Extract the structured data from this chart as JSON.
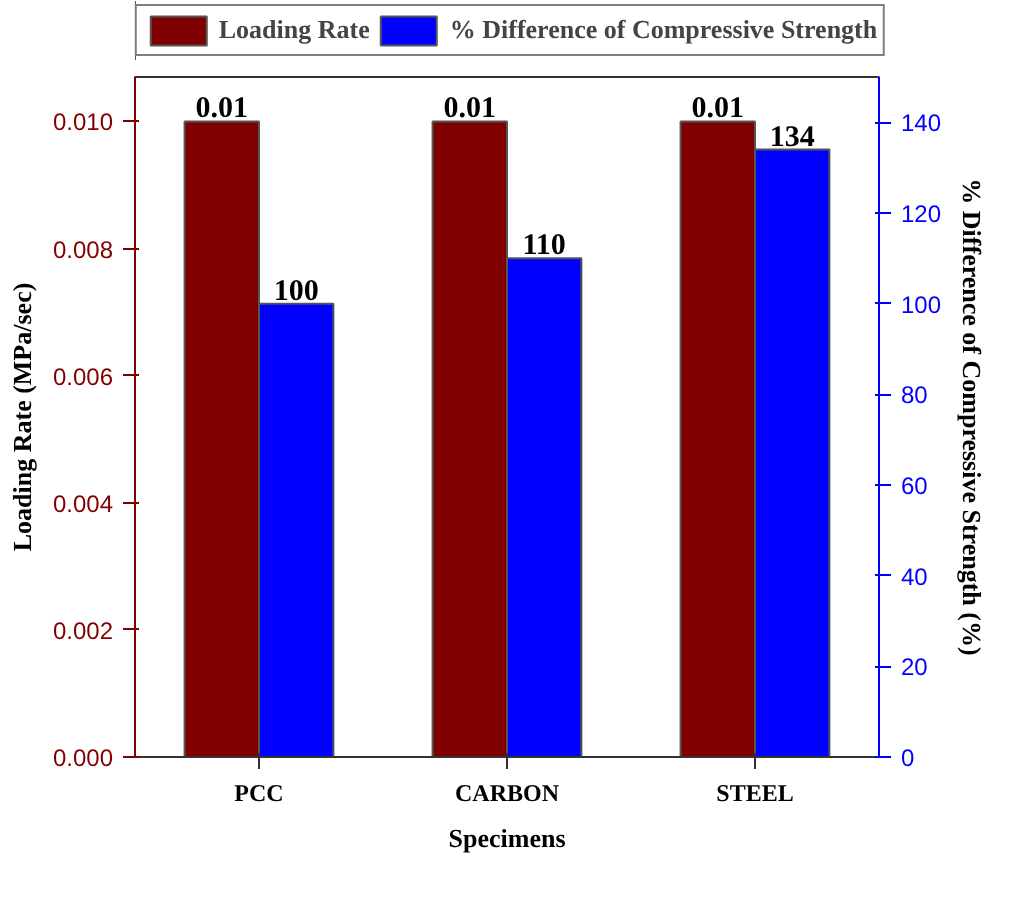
{
  "chart_data": {
    "type": "bar",
    "xlabel": "Specimens",
    "ylabel": "Loading Rate (MPa/sec)",
    "y2label": "% Difference of Compressive Strength (%)",
    "categories": [
      "PCC",
      "CARBON",
      "STEEL"
    ],
    "series": [
      {
        "name": "Loading Rate",
        "color": "#800000",
        "values": [
          0.01,
          0.01,
          0.01
        ]
      },
      {
        "name": "% Difference of Compressive Strength",
        "color": "#0000ff",
        "values": [
          100,
          110,
          134
        ],
        "axis": "y2"
      }
    ],
    "ylim": [
      0,
      0.0107
    ],
    "yticks": [
      {
        "value": 0,
        "label": "0.000"
      },
      {
        "value": 0.002,
        "label": "0.002"
      },
      {
        "value": 0.004,
        "label": "0.004"
      },
      {
        "value": 0.006,
        "label": "0.006"
      },
      {
        "value": 0.008,
        "label": "0.008"
      },
      {
        "value": 0.01,
        "label": "0.010"
      }
    ],
    "y2lim": [
      0,
      150
    ],
    "y2ticks": [
      0,
      20,
      40,
      60,
      80,
      100,
      120,
      140
    ],
    "data_labels": true,
    "legend": "top",
    "grid": false
  }
}
